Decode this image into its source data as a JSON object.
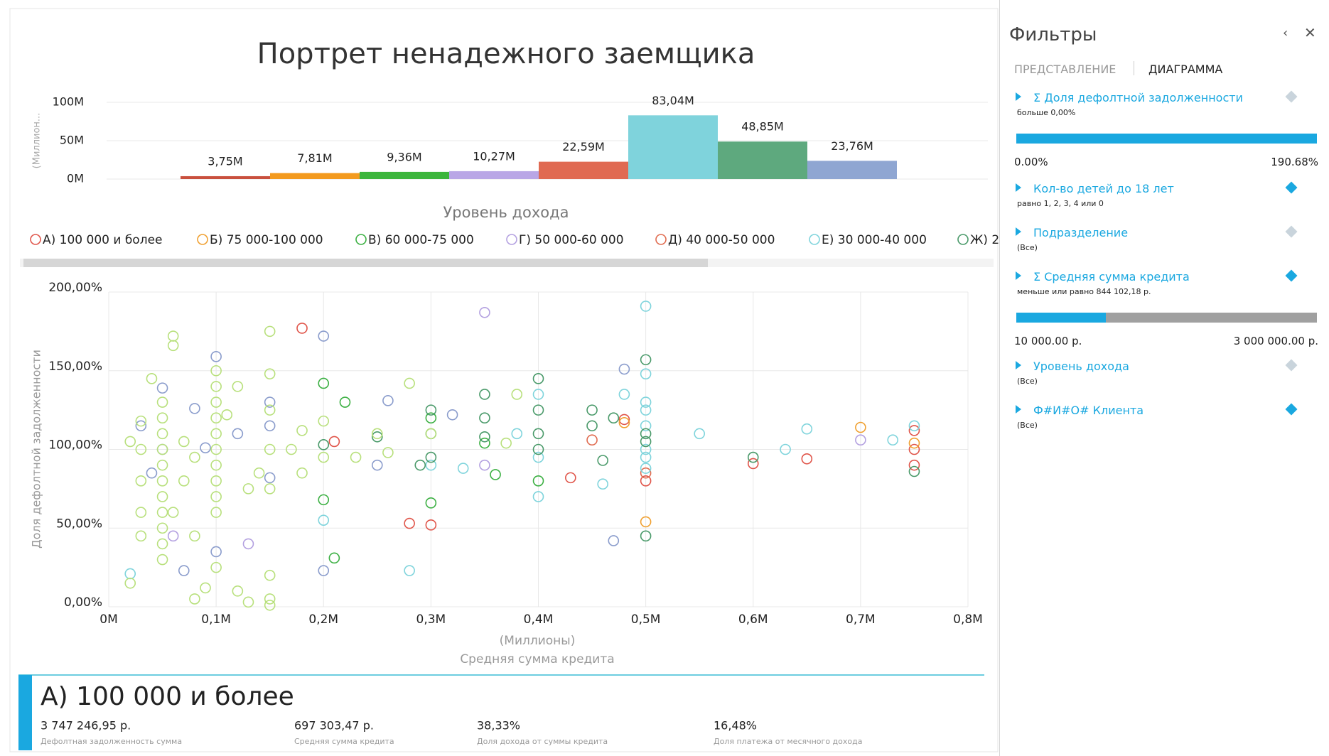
{
  "chart_data": [
    {
      "type": "bar",
      "title": "Портрет ненадежного заемщика",
      "y_label": "(Миллион...",
      "x_label": "Уровень дохода",
      "values": [
        3.75,
        7.81,
        9.36,
        10.27,
        22.59,
        83.04,
        48.85,
        23.76
      ],
      "value_labels": [
        "3,75M",
        "7,81M",
        "9,36M",
        "10,27M",
        "22,59M",
        "83,04M",
        "48,85M",
        "23,76M"
      ],
      "colors": [
        "#c9503e",
        "#f39a1e",
        "#3cb53c",
        "#b9a6e6",
        "#e06a52",
        "#7fd3dc",
        "#5ea97e",
        "#8fa6d2"
      ],
      "ylim": [
        0,
        100
      ],
      "yticks": [
        {
          "value": 0,
          "label": "0M"
        },
        {
          "value": 50,
          "label": "50M"
        },
        {
          "value": 100,
          "label": "100M"
        }
      ],
      "grid": true
    },
    {
      "type": "scatter",
      "y_label": "Доля дефолтной задолженности",
      "x_unit_label": "(Миллионы)",
      "x_label": "Средняя сумма кредита",
      "xlim": [
        0,
        0.8
      ],
      "xticks": [
        {
          "value": 0,
          "label": "0M"
        },
        {
          "value": 0.1,
          "label": "0,1M"
        },
        {
          "value": 0.2,
          "label": "0,2M"
        },
        {
          "value": 0.3,
          "label": "0,3M"
        },
        {
          "value": 0.4,
          "label": "0,4M"
        },
        {
          "value": 0.5,
          "label": "0,5M"
        },
        {
          "value": 0.6,
          "label": "0,6M"
        },
        {
          "value": 0.7,
          "label": "0,7M"
        },
        {
          "value": 0.8,
          "label": "0,8M"
        }
      ],
      "ylim": [
        0,
        200
      ],
      "yticks": [
        {
          "value": 0,
          "label": "0,00%"
        },
        {
          "value": 50,
          "label": "50,00%"
        },
        {
          "value": 100,
          "label": "100,00%"
        },
        {
          "value": 150,
          "label": "150,00%"
        },
        {
          "value": 200,
          "label": "200,00%"
        }
      ],
      "grid": true,
      "series": [
        {
          "name": "А) 100 000 и более",
          "color": "#e0554a",
          "x": [
            0.18,
            0.28,
            0.3,
            0.43,
            0.48,
            0.5,
            0.6,
            0.65,
            0.75,
            0.75,
            0.75,
            0.21
          ],
          "values": [
            177,
            53,
            52,
            82,
            119,
            80,
            91,
            94,
            112,
            90,
            100,
            105
          ]
        },
        {
          "name": "Б) 75 000-100 000",
          "color": "#f0a030",
          "x": [
            0.5,
            0.7,
            0.48,
            0.75
          ],
          "values": [
            54,
            114,
            117,
            104
          ]
        },
        {
          "name": "В) 60 000-75 000",
          "color": "#3cb043",
          "x": [
            0.2,
            0.21,
            0.2,
            0.22,
            0.3,
            0.36,
            0.4,
            0.3,
            0.35
          ],
          "values": [
            142,
            31,
            68,
            130,
            66,
            84,
            80,
            120,
            104
          ]
        },
        {
          "name": "Г) 50 000-60 000",
          "color": "#b3a0e0",
          "x": [
            0.35,
            0.7,
            0.35,
            0.13,
            0.06
          ],
          "values": [
            187,
            106,
            90,
            40,
            45
          ]
        },
        {
          "name": "Д) 40 000-50 000",
          "color": "#e06c50",
          "x": [
            0.45,
            0.5
          ],
          "values": [
            106,
            85
          ]
        },
        {
          "name": "Е) 30 000-40 000",
          "color": "#7fd4dc",
          "x": [
            0.5,
            0.5,
            0.5,
            0.5,
            0.5,
            0.5,
            0.5,
            0.5,
            0.4,
            0.4,
            0.4,
            0.55,
            0.63,
            0.65,
            0.73,
            0.75,
            0.28,
            0.46,
            0.3,
            0.02,
            0.48,
            0.38,
            0.33,
            0.2
          ],
          "values": [
            191,
            148,
            130,
            125,
            115,
            100,
            95,
            88,
            135,
            70,
            95,
            110,
            100,
            113,
            106,
            115,
            23,
            78,
            90,
            21,
            135,
            110,
            88,
            55
          ]
        },
        {
          "name": "Ж) 2",
          "color": "#4a9a6a",
          "x": [
            0.5,
            0.5,
            0.5,
            0.5,
            0.4,
            0.4,
            0.4,
            0.4,
            0.35,
            0.35,
            0.35,
            0.3,
            0.3,
            0.3,
            0.45,
            0.45,
            0.46,
            0.47,
            0.75,
            0.2,
            0.25,
            0.29,
            0.6
          ],
          "values": [
            157,
            110,
            105,
            45,
            145,
            125,
            110,
            100,
            135,
            120,
            108,
            125,
            110,
            95,
            115,
            125,
            93,
            120,
            86,
            103,
            108,
            90,
            95
          ]
        },
        {
          "color": "#8a9ccc",
          "x": [
            0.1,
            0.2,
            0.05,
            0.08,
            0.12,
            0.15,
            0.05,
            0.03,
            0.04,
            0.07,
            0.1,
            0.2,
            0.25,
            0.47,
            0.48,
            0.32,
            0.26,
            0.15,
            0.09,
            0.15
          ],
          "values": [
            159,
            172,
            139,
            126,
            110,
            115,
            100,
            115,
            85,
            23,
            35,
            23,
            90,
            42,
            151,
            122,
            131,
            130,
            101,
            82
          ]
        },
        {
          "color": "#b8e07c",
          "x": [
            0.06,
            0.06,
            0.15,
            0.1,
            0.1,
            0.1,
            0.1,
            0.1,
            0.1,
            0.1,
            0.1,
            0.1,
            0.1,
            0.05,
            0.05,
            0.05,
            0.05,
            0.05,
            0.05,
            0.05,
            0.05,
            0.05,
            0.05,
            0.05,
            0.03,
            0.03,
            0.03,
            0.03,
            0.03,
            0.02,
            0.02,
            0.07,
            0.08,
            0.08,
            0.12,
            0.15,
            0.15,
            0.15,
            0.15,
            0.15,
            0.15,
            0.15,
            0.13,
            0.14,
            0.17,
            0.18,
            0.2,
            0.2,
            0.23,
            0.26,
            0.28,
            0.25,
            0.3,
            0.37,
            0.38,
            0.12,
            0.09,
            0.04,
            0.06,
            0.08,
            0.1,
            0.13,
            0.18,
            0.11,
            0.07
          ],
          "values": [
            172,
            166,
            175,
            150,
            140,
            130,
            120,
            110,
            100,
            90,
            80,
            70,
            60,
            130,
            120,
            110,
            100,
            90,
            80,
            70,
            60,
            50,
            40,
            30,
            118,
            100,
            80,
            60,
            45,
            105,
            15,
            105,
            95,
            5,
            10,
            148,
            125,
            100,
            75,
            20,
            5,
            1,
            75,
            85,
            100,
            85,
            118,
            95,
            95,
            98,
            142,
            110,
            110,
            104,
            135,
            140,
            12,
            145,
            60,
            45,
            25,
            3,
            112,
            122,
            80
          ]
        }
      ]
    }
  ],
  "filters": {
    "title": "Фильтры",
    "tabs": [
      "ПРЕДСТАВЛЕНИЕ",
      "ДИАГРАММА"
    ],
    "items": [
      {
        "label": "Σ Доля дефолтной задолженности",
        "condition": "больше 0,00%",
        "range_min": "0.00%",
        "range_max": "190.68%"
      },
      {
        "label": "Кол-во детей до 18 лет",
        "condition": "равно 1, 2, 3, 4 или 0"
      },
      {
        "label": "Подразделение",
        "condition": "(Все)"
      },
      {
        "label": "Σ Средняя сумма кредита",
        "condition": "меньше или равно 844 102,18 р.",
        "range_min": "10 000.00 р.",
        "range_max": "3 000 000.00 р."
      },
      {
        "label": "Уровень дохода",
        "condition": "(Все)"
      },
      {
        "label": "Ф#И#О# Клиента",
        "condition": "(Все)"
      }
    ]
  },
  "card": {
    "title": "А) 100 000 и более",
    "metrics": [
      {
        "value": "3 747 246,95 р.",
        "label": "Дефолтная задолженность сумма"
      },
      {
        "value": "697 303,47 р.",
        "label": "Средняя сумма кредита"
      },
      {
        "value": "38,33%",
        "label": "Доля дохода от суммы кредита"
      },
      {
        "value": "16,48%",
        "label": "Доля платежа от месячного дохода"
      }
    ]
  }
}
